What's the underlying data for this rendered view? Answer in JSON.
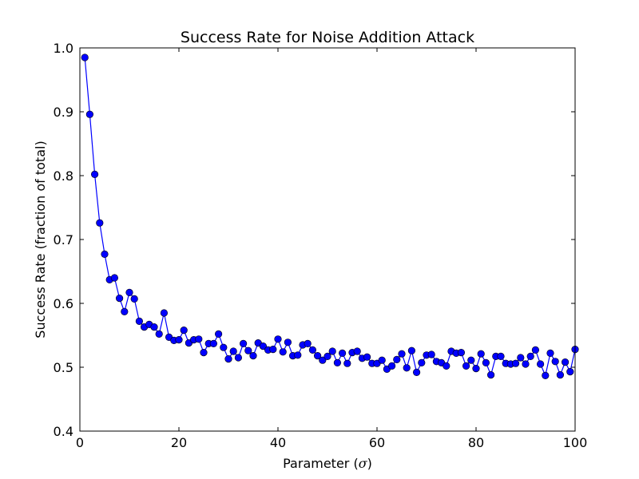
{
  "chart_data": {
    "type": "line",
    "title": "Success Rate for Noise Addition Attack",
    "xlabel_main": "Parameter (",
    "xlabel_symbol": "σ",
    "xlabel_end": ")",
    "ylabel": "Success Rate (fraction of total)",
    "xlim": [
      0,
      100
    ],
    "ylim": [
      0.4,
      1.0
    ],
    "x_ticks": [
      0,
      20,
      40,
      60,
      80,
      100
    ],
    "y_ticks": [
      0.4,
      0.5,
      0.6,
      0.7,
      0.8,
      0.9,
      1.0
    ],
    "x_tick_labels": [
      "0",
      "20",
      "40",
      "60",
      "80",
      "100"
    ],
    "y_tick_labels": [
      "0.4",
      "0.5",
      "0.6",
      "0.7",
      "0.8",
      "0.9",
      "1.0"
    ],
    "grid": false,
    "marker": "circle",
    "color": "#0000ff",
    "series": [
      {
        "x": [
          1,
          2,
          3,
          4,
          5,
          6,
          7,
          8,
          9,
          10,
          11,
          12,
          13,
          14,
          15,
          16,
          17,
          18,
          19,
          20,
          21,
          22,
          23,
          24,
          25,
          26,
          27,
          28,
          29,
          30,
          31,
          32,
          33,
          34,
          35,
          36,
          37,
          38,
          39,
          40,
          41,
          42,
          43,
          44,
          45,
          46,
          47,
          48,
          49,
          50,
          51,
          52,
          53,
          54,
          55,
          56,
          57,
          58,
          59,
          60,
          61,
          62,
          63,
          64,
          65,
          66,
          67,
          68,
          69,
          70,
          71,
          72,
          73,
          74,
          75,
          76,
          77,
          78,
          79,
          80,
          81,
          82,
          83,
          84,
          85,
          86,
          87,
          88,
          89,
          90,
          91,
          92,
          93,
          94,
          95,
          96,
          97,
          98,
          99,
          100
        ],
        "values": [
          0.985,
          0.896,
          0.802,
          0.726,
          0.677,
          0.637,
          0.64,
          0.608,
          0.587,
          0.617,
          0.607,
          0.572,
          0.563,
          0.567,
          0.563,
          0.552,
          0.585,
          0.547,
          0.542,
          0.543,
          0.558,
          0.538,
          0.543,
          0.544,
          0.523,
          0.537,
          0.537,
          0.552,
          0.531,
          0.513,
          0.525,
          0.515,
          0.537,
          0.526,
          0.518,
          0.538,
          0.533,
          0.527,
          0.528,
          0.544,
          0.524,
          0.539,
          0.518,
          0.519,
          0.535,
          0.537,
          0.527,
          0.518,
          0.511,
          0.517,
          0.525,
          0.507,
          0.522,
          0.506,
          0.523,
          0.525,
          0.514,
          0.516,
          0.506,
          0.506,
          0.511,
          0.497,
          0.502,
          0.512,
          0.521,
          0.499,
          0.526,
          0.492,
          0.507,
          0.519,
          0.52,
          0.509,
          0.507,
          0.502,
          0.525,
          0.522,
          0.523,
          0.502,
          0.511,
          0.498,
          0.521,
          0.507,
          0.488,
          0.517,
          0.517,
          0.506,
          0.505,
          0.506,
          0.515,
          0.505,
          0.517,
          0.527,
          0.505,
          0.487,
          0.522,
          0.509,
          0.488,
          0.508,
          0.493,
          0.528
        ]
      }
    ]
  }
}
